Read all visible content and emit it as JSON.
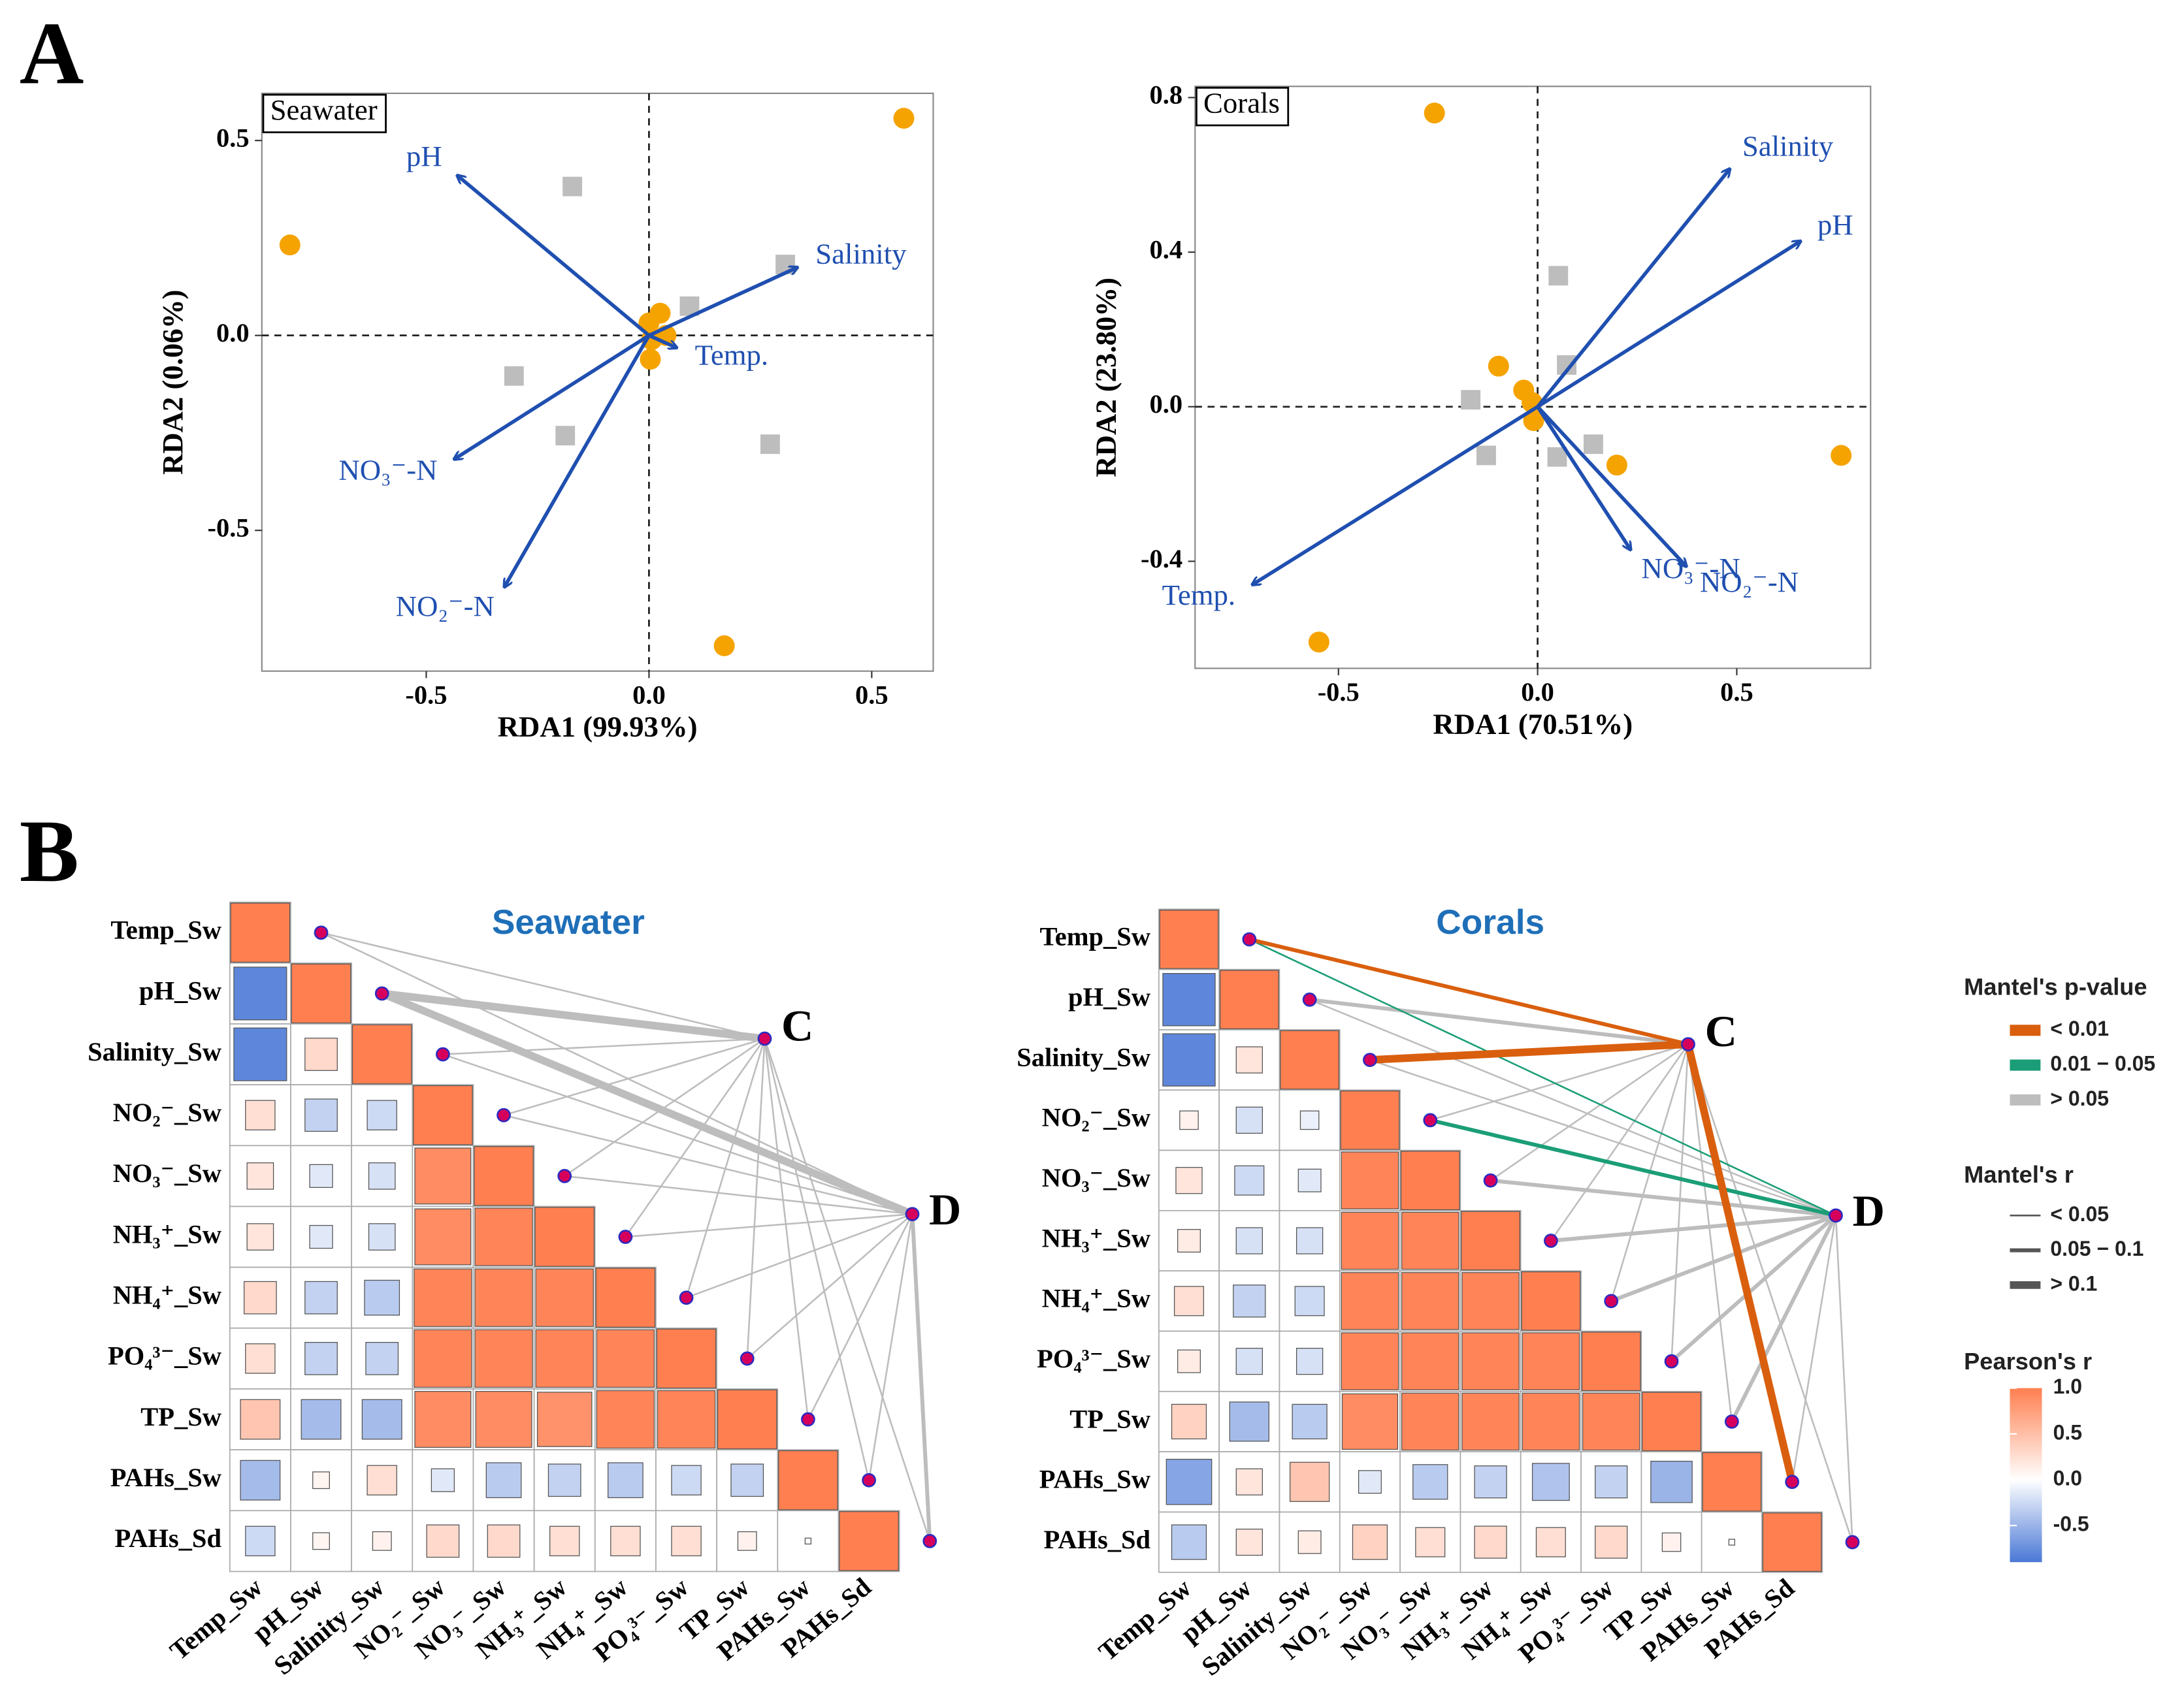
{
  "panel_labels": [
    "A",
    "B"
  ],
  "chart_data": [
    {
      "type": "scatter",
      "title": "Seawater",
      "xlabel": "RDA1 (99.93%)",
      "ylabel": "RDA2 (0.06%)",
      "xlim": [
        -0.869,
        0.638
      ],
      "ylim": [
        -0.861,
        0.621
      ],
      "xticks": [
        -0.5,
        {
          "value": 0,
          "label": "0.0"
        },
        0.5
      ],
      "yticks": [
        -0.5,
        {
          "value": 0,
          "label": "0.0"
        },
        0.5
      ],
      "series": [
        {
          "color": "#f5a300",
          "marker": "circle",
          "x": [
            -0.806,
            0.572,
            0.169,
            0.025,
            0.0,
            0.006,
            0.003,
            0.038
          ],
          "y": [
            0.232,
            0.557,
            -0.796,
            0.057,
            0.032,
            -0.011,
            -0.061,
            0.0
          ]
        },
        {
          "color": "#bdbdbd",
          "marker": "square",
          "x": [
            -0.172,
            0.306,
            0.091,
            -0.303,
            -0.188,
            0.272
          ],
          "y": [
            0.382,
            0.182,
            0.075,
            -0.104,
            -0.257,
            -0.279
          ]
        }
      ],
      "arrows": {
        "color": "#1f4fb0",
        "names": [
          "pH",
          "Salinity",
          "Temp.",
          "NO₃⁻-N",
          "NO₂⁻-N"
        ],
        "x": [
          -0.431,
          0.334,
          0.063,
          -0.438,
          -0.325
        ],
        "y": [
          0.411,
          0.175,
          -0.032,
          -0.318,
          -0.646
        ]
      }
    },
    {
      "type": "scatter",
      "title": "Corals",
      "xlabel": "RDA1 (70.51%)",
      "ylabel": "RDA2 (23.80%)",
      "xlim": [
        -0.86,
        0.836
      ],
      "ylim": [
        -0.677,
        0.829
      ],
      "xticks": [
        -0.5,
        {
          "value": 0,
          "label": "0.0"
        },
        0.5
      ],
      "yticks": [
        -0.4,
        {
          "value": 0,
          "label": "0.0"
        },
        0.4,
        0.8
      ],
      "series": [
        {
          "color": "#f5a300",
          "marker": "circle",
          "x": [
            -0.259,
            -0.549,
            0.762,
            0.199,
            -0.098,
            -0.035,
            -0.014,
            -0.01
          ],
          "y": [
            0.76,
            -0.609,
            -0.126,
            -0.151,
            0.105,
            0.043,
            0.011,
            -0.036
          ]
        },
        {
          "color": "#bdbdbd",
          "marker": "square",
          "x": [
            0.052,
            0.073,
            -0.168,
            -0.129,
            0.049,
            0.14
          ],
          "y": [
            0.339,
            0.108,
            0.018,
            -0.126,
            -0.13,
            -0.097
          ]
        }
      ],
      "arrows": {
        "color": "#1f4fb0",
        "names": [
          "Salinity",
          "pH",
          "Temp.",
          "NO₃⁻-N",
          "NO₂⁻-N"
        ],
        "x": [
          0.483,
          0.661,
          -0.717,
          0.234,
          0.374
        ],
        "y": [
          0.616,
          0.429,
          -0.461,
          -0.371,
          -0.414
        ]
      }
    },
    {
      "type": "mantel",
      "title": "Seawater",
      "title_color": "#1f6fb8",
      "variables": [
        "Temp_Sw",
        "pH_Sw",
        "Salinity_Sw",
        "NO₂⁻_Sw",
        "NO₃⁻_Sw",
        "NH₃⁺_Sw",
        "NH₄⁺_Sw",
        "PO₄³⁻_Sw",
        "TP_Sw",
        "PAHs_Sw",
        "PAHs_Sd"
      ],
      "matrix": [
        [
          1
        ],
        [
          -0.8,
          1
        ],
        [
          -0.8,
          0.3,
          1
        ],
        [
          0.25,
          -0.3,
          -0.25,
          1
        ],
        [
          0.2,
          -0.15,
          -0.2,
          0.9,
          1
        ],
        [
          0.2,
          -0.15,
          -0.2,
          0.9,
          0.95,
          1
        ],
        [
          0.3,
          -0.3,
          -0.35,
          0.95,
          0.95,
          0.95,
          1
        ],
        [
          0.25,
          -0.3,
          -0.3,
          0.95,
          0.95,
          0.95,
          0.95,
          1
        ],
        [
          0.45,
          -0.45,
          -0.45,
          0.9,
          0.9,
          0.85,
          0.95,
          0.95,
          1
        ],
        [
          -0.45,
          0.08,
          0.25,
          -0.15,
          -0.35,
          -0.3,
          -0.35,
          -0.25,
          -0.3,
          1
        ],
        [
          -0.25,
          0.08,
          0.1,
          0.3,
          0.3,
          0.25,
          0.25,
          0.25,
          0.1,
          0.01,
          1
        ]
      ],
      "nodes": [
        {
          "label": "C",
          "links": [
            {
              "p": "> 0.05",
              "r": "< 0.05"
            },
            {
              "p": "> 0.05",
              "r": "> 0.1"
            },
            {
              "p": "> 0.05",
              "r": "< 0.05"
            },
            {
              "p": "> 0.05",
              "r": "< 0.05"
            },
            {
              "p": "> 0.05",
              "r": "< 0.05"
            },
            {
              "p": "> 0.05",
              "r": "< 0.05"
            },
            {
              "p": "> 0.05",
              "r": "< 0.05"
            },
            {
              "p": "> 0.05",
              "r": "< 0.05"
            },
            {
              "p": "> 0.05",
              "r": "< 0.05"
            },
            {
              "p": "> 0.05",
              "r": "< 0.05"
            },
            {
              "p": "> 0.05",
              "r": "< 0.05"
            }
          ]
        },
        {
          "label": "D",
          "links": [
            {
              "p": "> 0.05",
              "r": "< 0.05"
            },
            {
              "p": "> 0.05",
              "r": "> 0.1"
            },
            {
              "p": "> 0.05",
              "r": "< 0.05"
            },
            {
              "p": "> 0.05",
              "r": "< 0.05"
            },
            {
              "p": "> 0.05",
              "r": "< 0.05"
            },
            {
              "p": "> 0.05",
              "r": "< 0.05"
            },
            {
              "p": "> 0.05",
              "r": "< 0.05"
            },
            {
              "p": "> 0.05",
              "r": "< 0.05"
            },
            {
              "p": "> 0.05",
              "r": "< 0.05"
            },
            {
              "p": "> 0.05",
              "r": "< 0.05"
            },
            {
              "p": "> 0.05",
              "r": "0.05 − 0.1"
            }
          ]
        }
      ]
    },
    {
      "type": "mantel",
      "title": "Corals",
      "title_color": "#1f6fb8",
      "variables": [
        "Temp_Sw",
        "pH_Sw",
        "Salinity_Sw",
        "NO₂⁻_Sw",
        "NO₃⁻_Sw",
        "NH₃⁺_Sw",
        "NH₄⁺_Sw",
        "PO₄³⁻_Sw",
        "TP_Sw",
        "PAHs_Sw",
        "PAHs_Sd"
      ],
      "matrix": [
        [
          1
        ],
        [
          -0.8,
          1
        ],
        [
          -0.8,
          0.2,
          1
        ],
        [
          0.1,
          -0.2,
          -0.1,
          1
        ],
        [
          0.2,
          -0.25,
          -0.15,
          0.95,
          1
        ],
        [
          0.15,
          -0.2,
          -0.2,
          0.95,
          0.95,
          1
        ],
        [
          0.25,
          -0.3,
          -0.25,
          0.95,
          0.95,
          0.95,
          1
        ],
        [
          0.15,
          -0.2,
          -0.2,
          0.95,
          0.95,
          0.95,
          0.95,
          1
        ],
        [
          0.35,
          -0.45,
          -0.35,
          0.9,
          0.95,
          0.95,
          0.95,
          0.95,
          1
        ],
        [
          -0.6,
          0.2,
          0.45,
          -0.15,
          -0.35,
          -0.3,
          -0.4,
          -0.3,
          -0.5,
          1
        ],
        [
          -0.35,
          0.2,
          0.15,
          0.35,
          0.25,
          0.3,
          0.25,
          0.3,
          0.1,
          0.01,
          1
        ]
      ],
      "nodes": [
        {
          "label": "C",
          "links": [
            {
              "p": "< 0.01",
              "r": "0.05 − 0.1"
            },
            {
              "p": "> 0.05",
              "r": "0.05 − 0.1"
            },
            {
              "p": "< 0.01",
              "r": "> 0.1"
            },
            {
              "p": "> 0.05",
              "r": "< 0.05"
            },
            {
              "p": "> 0.05",
              "r": "< 0.05"
            },
            {
              "p": "> 0.05",
              "r": "< 0.05"
            },
            {
              "p": "> 0.05",
              "r": "< 0.05"
            },
            {
              "p": "> 0.05",
              "r": "< 0.05"
            },
            {
              "p": "> 0.05",
              "r": "< 0.05"
            },
            {
              "p": "< 0.01",
              "r": "> 0.1"
            },
            {
              "p": "> 0.05",
              "r": "< 0.05"
            }
          ]
        },
        {
          "label": "D",
          "links": [
            {
              "p": "0.01 − 0.05",
              "r": "< 0.05"
            },
            {
              "p": "> 0.05",
              "r": "< 0.05"
            },
            {
              "p": "> 0.05",
              "r": "< 0.05"
            },
            {
              "p": "0.01 − 0.05",
              "r": "0.05 − 0.1"
            },
            {
              "p": "> 0.05",
              "r": "0.05 − 0.1"
            },
            {
              "p": "> 0.05",
              "r": "0.05 − 0.1"
            },
            {
              "p": "> 0.05",
              "r": "0.05 − 0.1"
            },
            {
              "p": "> 0.05",
              "r": "0.05 − 0.1"
            },
            {
              "p": "> 0.05",
              "r": "0.05 − 0.1"
            },
            {
              "p": "> 0.05",
              "r": "< 0.05"
            },
            {
              "p": "> 0.05",
              "r": "< 0.05"
            }
          ]
        }
      ]
    }
  ],
  "legend": {
    "p": {
      "title": "Mantel's p-value",
      "items": [
        {
          "label": "< 0.01",
          "color": "#d95f0e"
        },
        {
          "label": "0.01 − 0.05",
          "color": "#1b9e77"
        },
        {
          "label": "> 0.05",
          "color": "#bdbdbd"
        }
      ]
    },
    "r": {
      "title": "Mantel's r",
      "color": "#555555",
      "items": [
        {
          "label": "< 0.05"
        },
        {
          "label": "0.05 − 0.1"
        },
        {
          "label": "> 0.1"
        }
      ]
    },
    "pearson": {
      "title": "Pearson's r",
      "lim": [
        -0.9,
        1
      ],
      "colors": [
        "#4a78d6",
        "#ffffff",
        "#ff7f50"
      ],
      "ticks": [
        {
          "value": 1,
          "label": "1.0"
        },
        0.5,
        {
          "value": 0,
          "label": "0.0"
        },
        -0.5
      ]
    }
  }
}
